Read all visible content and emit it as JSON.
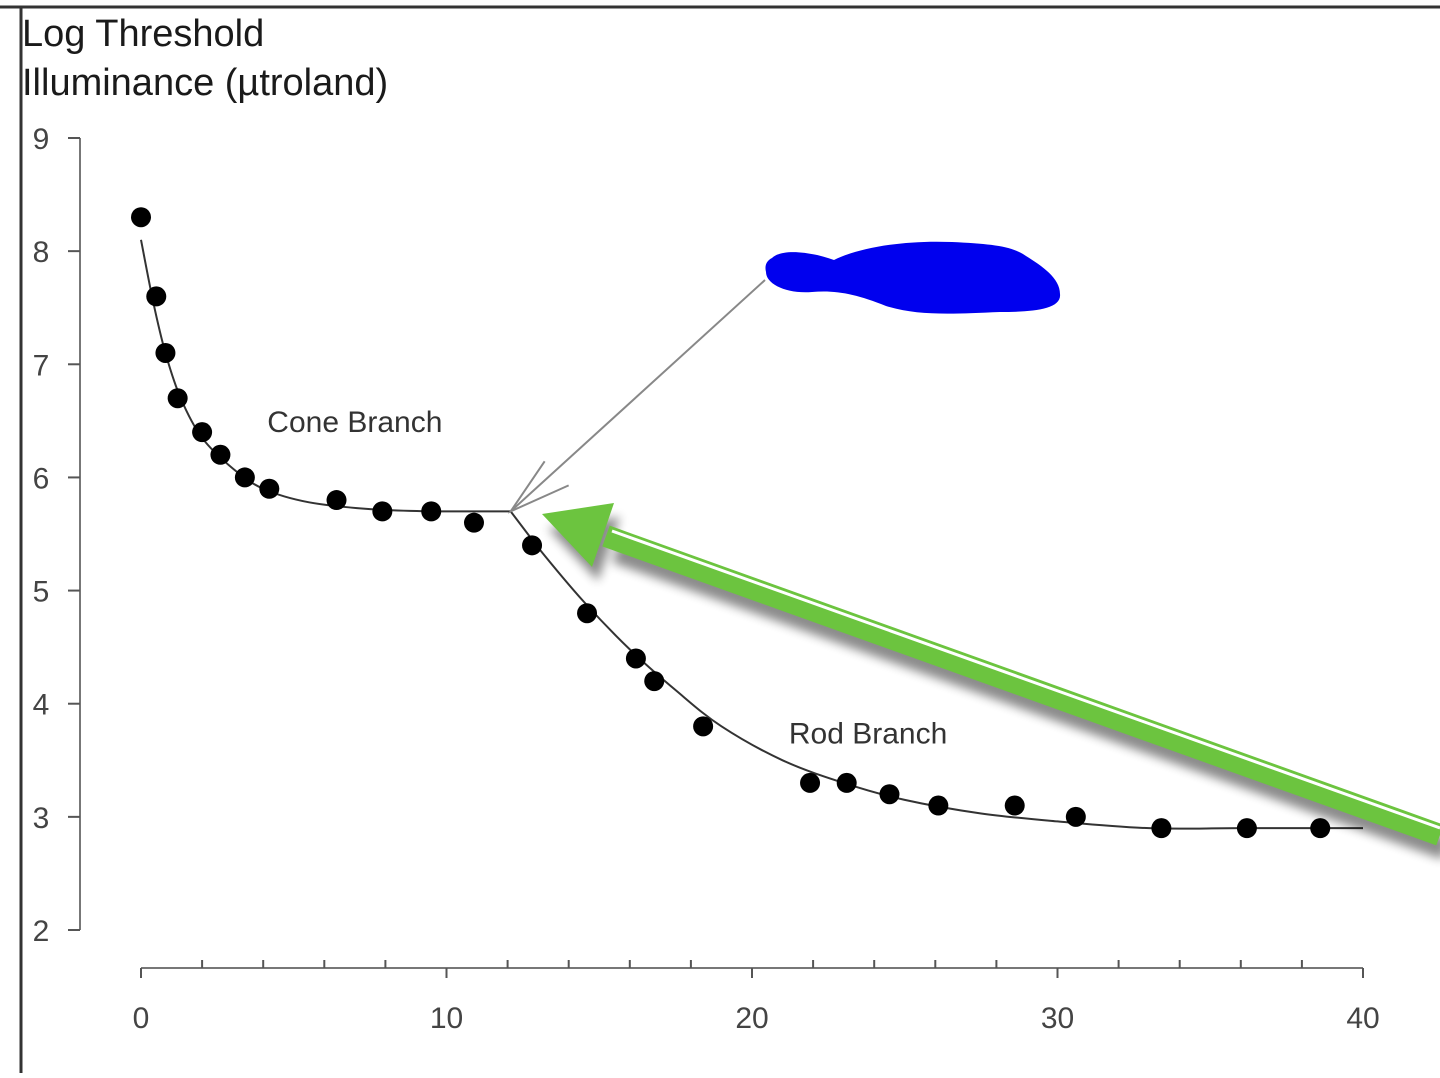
{
  "chart_data": {
    "type": "scatter",
    "ylabel_lines": [
      "Log Threshold",
      "Illuminance (µtroland)"
    ],
    "xlabel": "",
    "xlim": [
      0,
      40
    ],
    "ylim": [
      2,
      9
    ],
    "x_ticks": [
      0,
      10,
      20,
      30,
      40
    ],
    "y_ticks": [
      2,
      3,
      4,
      5,
      6,
      7,
      8,
      9
    ],
    "grid": false,
    "series": [
      {
        "points": [
          [
            0.0,
            8.3
          ],
          [
            0.5,
            7.6
          ],
          [
            0.8,
            7.1
          ],
          [
            1.2,
            6.7
          ],
          [
            2.0,
            6.4
          ],
          [
            2.6,
            6.2
          ],
          [
            3.4,
            6.0
          ],
          [
            4.2,
            5.9
          ],
          [
            6.4,
            5.8
          ],
          [
            7.9,
            5.7
          ],
          [
            9.5,
            5.7
          ],
          [
            10.9,
            5.6
          ],
          [
            12.8,
            5.4
          ],
          [
            14.6,
            4.8
          ],
          [
            16.2,
            4.4
          ],
          [
            16.8,
            4.2
          ],
          [
            18.4,
            3.8
          ],
          [
            21.9,
            3.3
          ],
          [
            23.1,
            3.3
          ],
          [
            24.5,
            3.2
          ],
          [
            26.1,
            3.1
          ],
          [
            28.6,
            3.1
          ],
          [
            30.6,
            3.0
          ],
          [
            33.4,
            2.9
          ],
          [
            36.2,
            2.9
          ],
          [
            38.6,
            2.9
          ]
        ]
      }
    ],
    "fit_curve": [
      [
        0.0,
        8.1
      ],
      [
        0.4,
        7.55
      ],
      [
        0.8,
        7.1
      ],
      [
        1.3,
        6.7
      ],
      [
        2.0,
        6.35
      ],
      [
        3.0,
        6.08
      ],
      [
        4.0,
        5.9
      ],
      [
        5.5,
        5.78
      ],
      [
        7.5,
        5.72
      ],
      [
        9.5,
        5.7
      ],
      [
        12.1,
        5.7
      ],
      [
        13.0,
        5.38
      ],
      [
        14.5,
        4.9
      ],
      [
        16.0,
        4.48
      ],
      [
        17.5,
        4.12
      ],
      [
        19.0,
        3.8
      ],
      [
        21.0,
        3.5
      ],
      [
        23.0,
        3.3
      ],
      [
        25.0,
        3.15
      ],
      [
        27.5,
        3.03
      ],
      [
        30.0,
        2.96
      ],
      [
        33.0,
        2.9
      ],
      [
        36.0,
        2.9
      ],
      [
        40.0,
        2.9
      ]
    ],
    "annotations": [
      {
        "text": "Cone Branch",
        "x": 7.0,
        "y": 6.4
      },
      {
        "text": "Rod Branch",
        "x": 23.8,
        "y": 3.65
      }
    ],
    "pointer_target": [
      12.1,
      5.7
    ],
    "colors": {
      "points": "#000000",
      "curve": "#333333",
      "axis": "#555555",
      "redaction": "#0000ee",
      "green_arrow": "#6cc43f",
      "thin_arrow": "#888888"
    }
  }
}
